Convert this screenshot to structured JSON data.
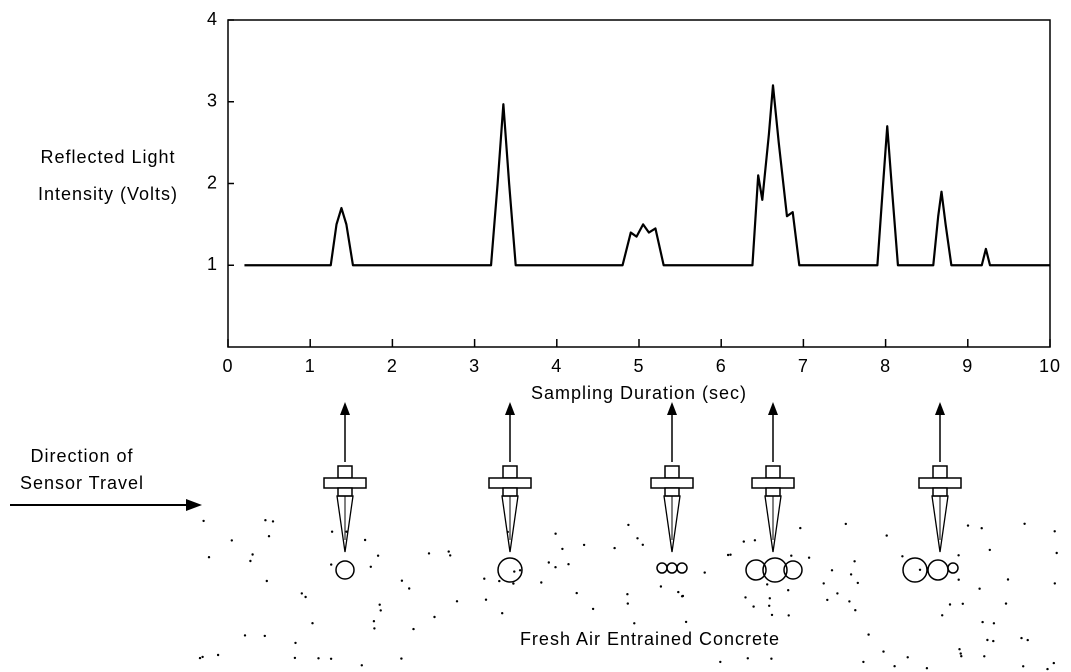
{
  "chart_data": {
    "type": "line",
    "ylabel": [
      "Reflected Light",
      "Intensity (Volts)"
    ],
    "xlabel": "Sampling Duration (sec)",
    "x": [
      0.2,
      1.25,
      1.32,
      1.38,
      1.44,
      1.52,
      3.2,
      3.28,
      3.35,
      3.42,
      3.5,
      4.8,
      4.9,
      4.97,
      5.05,
      5.12,
      5.2,
      5.3,
      6.38,
      6.45,
      6.5,
      6.58,
      6.63,
      6.7,
      6.8,
      6.87,
      6.95,
      7.9,
      7.97,
      8.02,
      8.08,
      8.15,
      8.58,
      8.64,
      8.68,
      8.73,
      8.8,
      9.17,
      9.22,
      9.27,
      10
    ],
    "values": [
      1,
      1,
      1.5,
      1.7,
      1.5,
      1,
      1,
      2.0,
      2.97,
      2.0,
      1,
      1,
      1.4,
      1.35,
      1.5,
      1.4,
      1.45,
      1,
      1,
      2.1,
      1.8,
      2.6,
      3.2,
      2.5,
      1.6,
      1.65,
      1,
      1,
      2.0,
      2.7,
      1.9,
      1,
      1,
      1.6,
      1.9,
      1.5,
      1,
      1,
      1.2,
      1,
      1
    ],
    "color": "#000000",
    "xlim": [
      0,
      10
    ],
    "xticks": [
      0,
      1,
      2,
      3,
      4,
      5,
      6,
      7,
      8,
      9,
      10
    ],
    "ylim": [
      0,
      4
    ],
    "yticks": [
      1,
      2,
      3,
      4
    ]
  },
  "diagram": {
    "direction_label": [
      "Direction of",
      "Sensor Travel"
    ],
    "caption": "Fresh Air Entrained Concrete"
  }
}
